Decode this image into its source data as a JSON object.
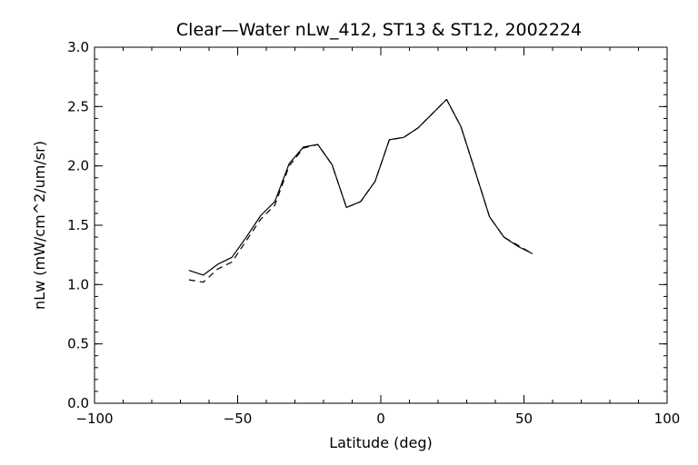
{
  "chart_data": {
    "type": "line",
    "title": "Clear—Water nLw_412, ST13 & ST12, 2002224",
    "xlabel": "Latitude (deg)",
    "ylabel": "nLw (mW/cm^2/um/sr)",
    "xlim": [
      -100,
      100
    ],
    "ylim": [
      0.0,
      3.0
    ],
    "x_ticks": [
      -100,
      -50,
      0,
      50,
      100
    ],
    "x_tick_labels": [
      "−100",
      "−50",
      "0",
      "50",
      "100"
    ],
    "y_ticks": [
      0.0,
      0.5,
      1.0,
      1.5,
      2.0,
      2.5,
      3.0
    ],
    "y_tick_labels": [
      "0.0",
      "0.5",
      "1.0",
      "1.5",
      "2.0",
      "2.5",
      "3.0"
    ],
    "x_minor_step": 10,
    "y_minor_step": 0.1,
    "grid": false,
    "series": [
      {
        "line_style": "solid",
        "color": "#000000",
        "x": [
          -67,
          -62,
          -57,
          -52,
          -47,
          -42,
          -37,
          -32,
          -27,
          -22,
          -17,
          -12,
          -7,
          -2,
          3,
          8,
          13,
          18,
          23,
          28,
          33,
          38,
          43,
          48,
          53
        ],
        "y": [
          1.12,
          1.08,
          1.17,
          1.23,
          1.4,
          1.58,
          1.7,
          2.02,
          2.16,
          2.18,
          2.01,
          1.65,
          1.7,
          1.87,
          2.22,
          2.24,
          2.32,
          2.44,
          2.56,
          2.33,
          1.95,
          1.57,
          1.4,
          1.32,
          1.26
        ]
      },
      {
        "line_style": "dashed",
        "color": "#000000",
        "x": [
          -67,
          -62,
          -57,
          -52,
          -47,
          -42,
          -37,
          -32,
          -27,
          -22,
          -17,
          -12,
          -7,
          -2,
          3,
          8,
          13,
          18,
          23,
          28,
          33,
          38,
          43,
          48,
          53
        ],
        "y": [
          1.04,
          1.02,
          1.13,
          1.19,
          1.37,
          1.55,
          1.67,
          2.0,
          2.15,
          2.18,
          2.01,
          1.65,
          1.7,
          1.87,
          2.22,
          2.24,
          2.32,
          2.44,
          2.56,
          2.33,
          1.95,
          1.57,
          1.4,
          1.33,
          1.26
        ]
      }
    ]
  }
}
